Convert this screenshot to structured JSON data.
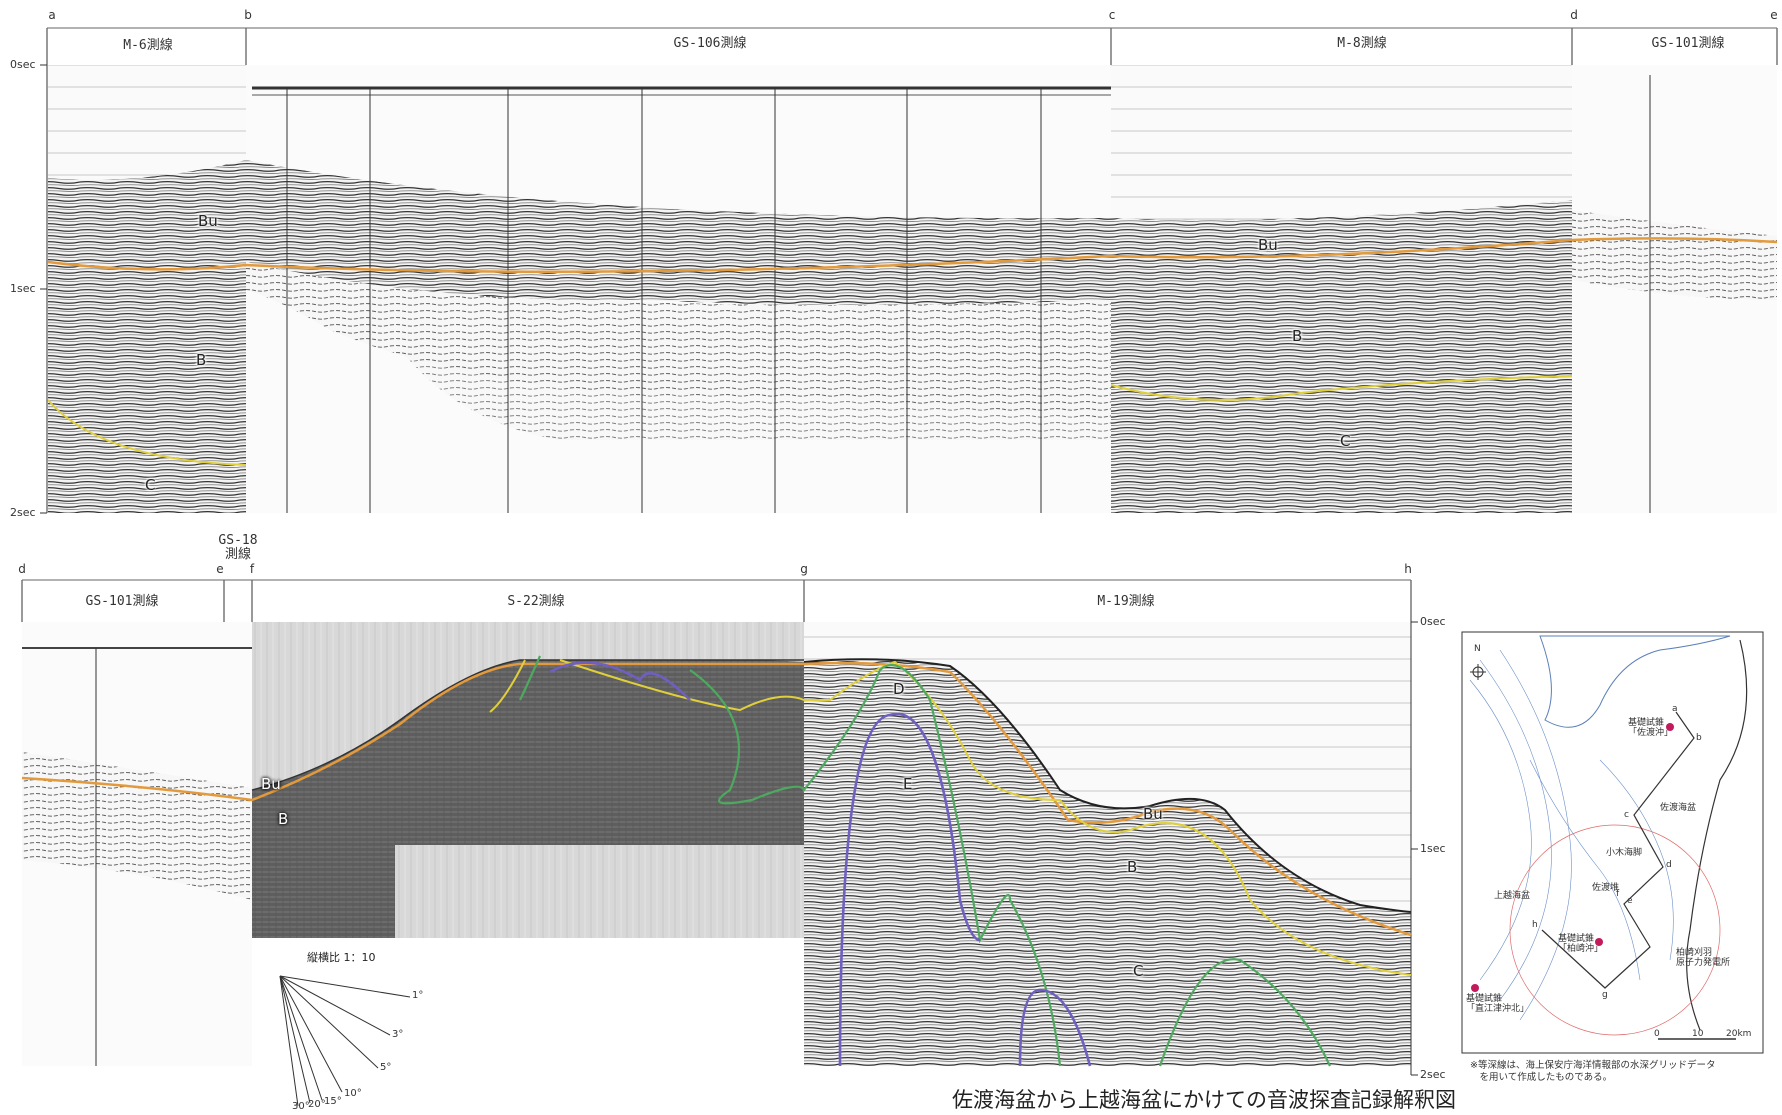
{
  "top_row": {
    "points": [
      "a",
      "b",
      "c",
      "d",
      "e"
    ],
    "panels": [
      {
        "title": "M-6測線"
      },
      {
        "title": "GS-106測線"
      },
      {
        "title": "M-8測線"
      },
      {
        "title": "GS-101測線"
      }
    ],
    "time_ticks": [
      "0sec",
      "1sec",
      "2sec"
    ]
  },
  "bottom_row": {
    "points": [
      "d",
      "e",
      "f",
      "g",
      "h"
    ],
    "panels": [
      {
        "title": "GS-101測線"
      },
      {
        "title": "GS-18\n測線"
      },
      {
        "title": "S-22測線"
      },
      {
        "title": "M-19測線"
      }
    ],
    "time_ticks": [
      "0sec",
      "1sec",
      "2sec"
    ]
  },
  "layers": {
    "top": [
      "Bu",
      "B",
      "C",
      "Bu",
      "B",
      "C"
    ],
    "bottom": [
      "Bu",
      "B",
      "D",
      "E",
      "Bu",
      "B",
      "C"
    ]
  },
  "horizon_colors": {
    "orange": "#e39a3c",
    "yellow": "#e0cf3c",
    "green": "#4fa85f",
    "purple": "#6f5fc0"
  },
  "ratio_legend": {
    "label": "縦横比 1：10",
    "angles": [
      "1°",
      "3°",
      "5°",
      "10°",
      "15°",
      "20°",
      "30°"
    ]
  },
  "map": {
    "north": "N",
    "points": [
      "a",
      "b",
      "c",
      "d",
      "e",
      "f",
      "g",
      "h"
    ],
    "wells": [
      "基礎試錐\n「佐渡沖」",
      "基礎試錐\n「柏崎沖」",
      "基礎試錐\n「直江津沖北」"
    ],
    "places": [
      "佐渡海盆",
      "上越海盆",
      "小木海脚",
      "佐渡堆",
      "柏崎刈羽\n原子力発電所"
    ],
    "scale": [
      "0",
      "10",
      "20km"
    ]
  },
  "map_note": "※等深線は、海上保安庁海洋情報部の水深グリッドデータ\n　を用いて作成したものである。",
  "caption": "佐渡海盆から上越海盆にかけての音波探査記録解釈図"
}
